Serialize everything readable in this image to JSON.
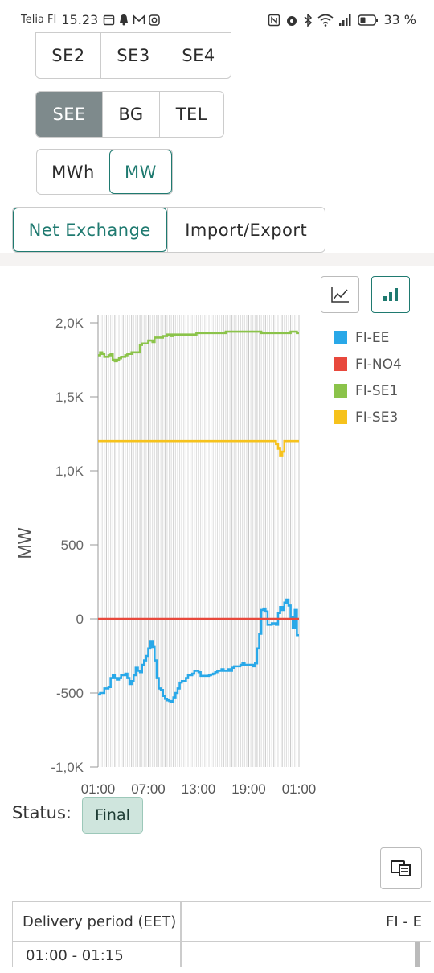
{
  "status_bar": {
    "carrier": "Telia FI",
    "time": "15.23",
    "battery": "33 %"
  },
  "area_buttons_1": [
    "SE2",
    "SE3",
    "SE4"
  ],
  "area_buttons_2": [
    "SEE",
    "BG",
    "TEL"
  ],
  "unit_buttons": [
    "MWh",
    "MW"
  ],
  "view_buttons": [
    "Net Exchange",
    "Import/Export"
  ],
  "selected": {
    "area": "SEE",
    "unit": "MW",
    "view": "Net Exchange",
    "chart_type": "bar"
  },
  "chart_toolbar": {
    "line_icon": "line-chart-icon",
    "bar_icon": "bar-chart-icon"
  },
  "chart_data": {
    "type": "line",
    "ylabel": "MW",
    "yticks": [
      "2,0K",
      "1,5K",
      "1,0K",
      "500",
      "0",
      "-500",
      "-1,0K"
    ],
    "ytick_values": [
      2000,
      1500,
      1000,
      500,
      0,
      -500,
      -1000
    ],
    "ylim": [
      -1000,
      2000
    ],
    "xticks": [
      "01:00",
      "07:00",
      "13:00",
      "19:00",
      "01:00"
    ],
    "x_count": 96,
    "grid": "vertical",
    "legend_position": "right",
    "series": [
      {
        "name": "FI-EE",
        "color": "#29a8e8",
        "values": [
          -510,
          -500,
          -500,
          -470,
          -470,
          -460,
          -400,
          -380,
          -400,
          -410,
          -400,
          -380,
          -380,
          -370,
          -400,
          -440,
          -420,
          -380,
          -330,
          -350,
          -360,
          -310,
          -280,
          -250,
          -200,
          -150,
          -190,
          -280,
          -400,
          -470,
          -480,
          -520,
          -540,
          -550,
          -555,
          -560,
          -530,
          -500,
          -470,
          -430,
          -420,
          -420,
          -400,
          -380,
          -380,
          -370,
          -350,
          -350,
          -360,
          -385,
          -385,
          -385,
          -385,
          -380,
          -375,
          -370,
          -360,
          -350,
          -350,
          -340,
          -350,
          -350,
          -340,
          -350,
          -330,
          -320,
          -320,
          -320,
          -310,
          -300,
          -310,
          -310,
          -310,
          -310,
          -320,
          -300,
          -200,
          -100,
          60,
          70,
          50,
          -40,
          -40,
          -30,
          -30,
          -40,
          40,
          80,
          60,
          110,
          130,
          90,
          10,
          -60,
          60,
          -110
        ]
      },
      {
        "name": "FI-NO4",
        "color": "#e8483c",
        "values": [
          0,
          0,
          0,
          0,
          0,
          0,
          0,
          0,
          0,
          0,
          0,
          0,
          0,
          0,
          0,
          0,
          0,
          0,
          0,
          0,
          0,
          0,
          0,
          0,
          0,
          0,
          0,
          0,
          0,
          0,
          0,
          0,
          0,
          0,
          0,
          0,
          0,
          0,
          0,
          0,
          0,
          0,
          0,
          0,
          0,
          0,
          0,
          0,
          0,
          0,
          0,
          0,
          0,
          0,
          0,
          0,
          0,
          0,
          0,
          0,
          0,
          0,
          0,
          0,
          0,
          0,
          0,
          0,
          0,
          0,
          0,
          0,
          0,
          0,
          0,
          0,
          0,
          0,
          0,
          0,
          0,
          0,
          0,
          0,
          0,
          0,
          0,
          0,
          0,
          0,
          0,
          0,
          0,
          0,
          0,
          0
        ]
      },
      {
        "name": "FI-SE1",
        "color": "#8bc34a",
        "values": [
          1780,
          1800,
          1790,
          1770,
          1770,
          1780,
          1790,
          1750,
          1740,
          1750,
          1760,
          1770,
          1770,
          1780,
          1790,
          1790,
          1800,
          1800,
          1800,
          1800,
          1850,
          1860,
          1860,
          1860,
          1880,
          1880,
          1870,
          1900,
          1900,
          1900,
          1900,
          1910,
          1910,
          1920,
          1920,
          1910,
          1920,
          1920,
          1920,
          1920,
          1920,
          1920,
          1920,
          1920,
          1920,
          1920,
          1920,
          1930,
          1930,
          1930,
          1930,
          1930,
          1930,
          1930,
          1930,
          1930,
          1930,
          1930,
          1930,
          1930,
          1930,
          1940,
          1940,
          1940,
          1940,
          1940,
          1940,
          1940,
          1940,
          1940,
          1940,
          1940,
          1940,
          1940,
          1940,
          1940,
          1940,
          1940,
          1930,
          1930,
          1930,
          1930,
          1930,
          1930,
          1930,
          1930,
          1930,
          1930,
          1930,
          1930,
          1930,
          1930,
          1940,
          1940,
          1940,
          1930
        ]
      },
      {
        "name": "FI-SE3",
        "color": "#f6c21c",
        "values": [
          1200,
          1200,
          1200,
          1200,
          1200,
          1200,
          1200,
          1200,
          1200,
          1200,
          1200,
          1200,
          1200,
          1200,
          1200,
          1200,
          1200,
          1200,
          1200,
          1200,
          1200,
          1200,
          1200,
          1200,
          1200,
          1200,
          1200,
          1200,
          1200,
          1200,
          1200,
          1200,
          1200,
          1200,
          1200,
          1200,
          1200,
          1200,
          1200,
          1200,
          1200,
          1200,
          1200,
          1200,
          1200,
          1200,
          1200,
          1200,
          1200,
          1200,
          1200,
          1200,
          1200,
          1200,
          1200,
          1200,
          1200,
          1200,
          1200,
          1200,
          1200,
          1200,
          1200,
          1200,
          1200,
          1200,
          1200,
          1200,
          1200,
          1200,
          1200,
          1200,
          1200,
          1200,
          1200,
          1200,
          1200,
          1200,
          1200,
          1200,
          1200,
          1200,
          1200,
          1200,
          1200,
          1180,
          1150,
          1100,
          1130,
          1200,
          1200,
          1200,
          1200,
          1200,
          1200,
          1200
        ]
      }
    ]
  },
  "status": {
    "label": "Status:",
    "value": "Final"
  },
  "table": {
    "headers": [
      "Delivery period (EET)",
      "FI - E"
    ],
    "rows": [
      [
        "01:00 - 01:15"
      ]
    ]
  }
}
